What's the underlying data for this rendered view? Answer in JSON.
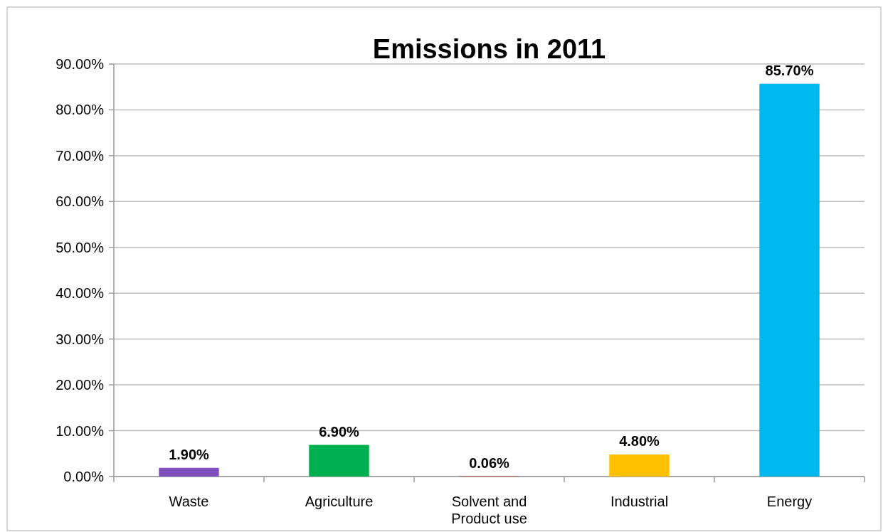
{
  "chart_data": {
    "type": "bar",
    "title": "Emissions in 2011",
    "categories": [
      "Waste",
      "Agriculture",
      "Solvent and Product use",
      "Industrial",
      "Energy"
    ],
    "values": [
      1.9,
      6.9,
      0.06,
      4.8,
      85.7
    ],
    "colors": [
      "#7f4fbd",
      "#00b050",
      "#e0301e",
      "#ffc000",
      "#00b8f0"
    ],
    "value_labels": [
      "1.90%",
      "6.90%",
      "0.06%",
      "4.80%",
      "85.70%"
    ],
    "ylim": [
      0,
      90
    ],
    "yticks": [
      {
        "value": 0,
        "label": "0.00%"
      },
      {
        "value": 10,
        "label": "10.00%"
      },
      {
        "value": 20,
        "label": "20.00%"
      },
      {
        "value": 30,
        "label": "30.00%"
      },
      {
        "value": 40,
        "label": "40.00%"
      },
      {
        "value": 50,
        "label": "50.00%"
      },
      {
        "value": 60,
        "label": "60.00%"
      },
      {
        "value": 70,
        "label": "70.00%"
      },
      {
        "value": 80,
        "label": "80.00%"
      },
      {
        "value": 90,
        "label": "90.00%"
      }
    ],
    "grid": "y"
  }
}
